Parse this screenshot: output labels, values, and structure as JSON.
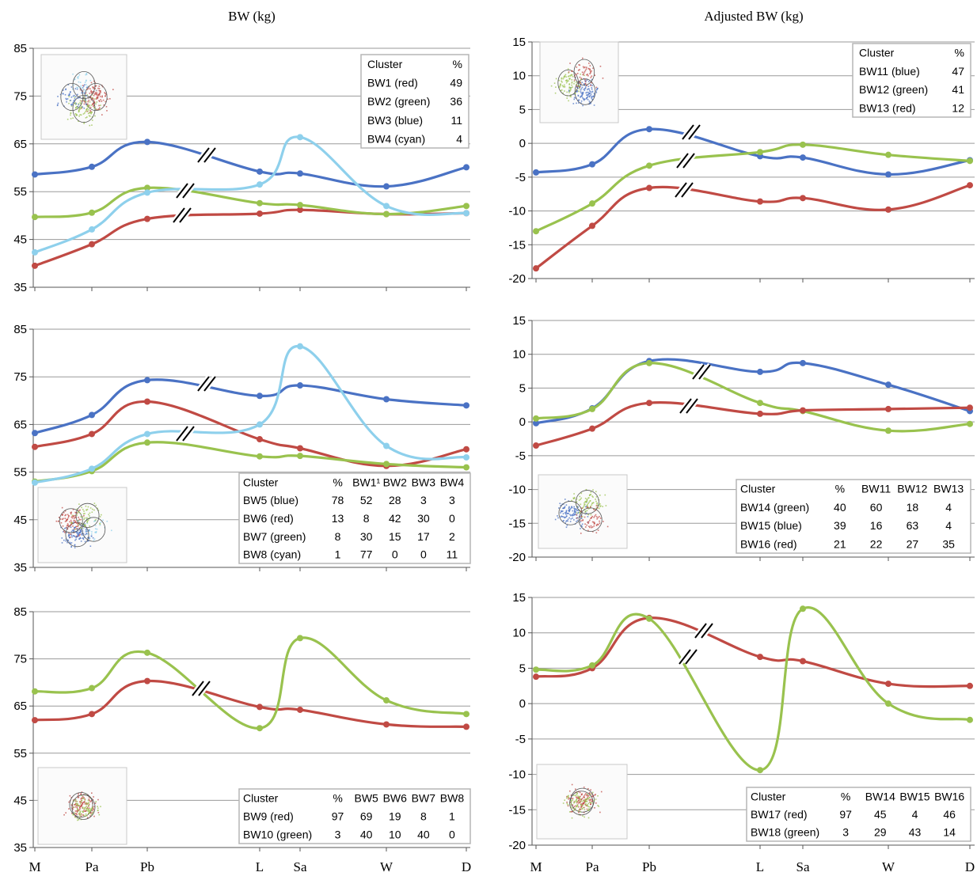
{
  "column_titles": [
    "BW (kg)",
    "Adjusted BW (kg)"
  ],
  "x_categories": [
    "M",
    "Pa",
    "Pb",
    "L",
    "Sa",
    "W",
    "D"
  ],
  "colors": {
    "blue": "#4a72c4",
    "red": "#c04a44",
    "green": "#99c24e",
    "cyan": "#8ed0ec"
  },
  "chart_data": [
    {
      "type": "line",
      "ylim": [
        35,
        85
      ],
      "yticks": [
        35,
        45,
        55,
        65,
        75,
        85
      ],
      "categories": [
        "M",
        "Pa",
        "Pb",
        "L",
        "Sa",
        "W",
        "D"
      ],
      "series": [
        {
          "name": "BW1 (red)",
          "color": "red",
          "values": [
            39.5,
            44,
            49.3,
            50.4,
            51.2,
            50.3,
            50.5
          ]
        },
        {
          "name": "BW2 (green)",
          "color": "green",
          "values": [
            49.7,
            50.6,
            55.8,
            52.6,
            52.2,
            50.3,
            52.0
          ]
        },
        {
          "name": "BW3 (blue)",
          "color": "blue",
          "values": [
            58.6,
            60.2,
            65.4,
            59.2,
            58.8,
            56.1,
            60.1
          ]
        },
        {
          "name": "BW4 (cyan)",
          "color": "cyan",
          "values": [
            42.3,
            47.1,
            54.8,
            56.5,
            66.4,
            52.0,
            50.5
          ]
        }
      ],
      "table": {
        "header": [
          "Cluster",
          "%"
        ],
        "rows": [
          [
            "BW1 (red)",
            "49"
          ],
          [
            "BW2 (green)",
            "36"
          ],
          [
            "BW3 (blue)",
            "11"
          ],
          [
            "BW4 (cyan)",
            "4"
          ]
        ]
      }
    },
    {
      "type": "line",
      "ylim": [
        -20,
        15
      ],
      "yticks": [
        -20,
        -15,
        -10,
        -5,
        0,
        5,
        10,
        15
      ],
      "categories": [
        "M",
        "Pa",
        "Pb",
        "L",
        "Sa",
        "W",
        "D"
      ],
      "series": [
        {
          "name": "BW11 (blue)",
          "color": "blue",
          "values": [
            -4.3,
            -3.1,
            2.1,
            -1.9,
            -2.1,
            -4.6,
            -2.5
          ]
        },
        {
          "name": "BW12 (green)",
          "color": "green",
          "values": [
            -13.0,
            -8.9,
            -3.3,
            -1.3,
            -0.2,
            -1.7,
            -2.6
          ]
        },
        {
          "name": "BW13 (red)",
          "color": "red",
          "values": [
            -18.5,
            -12.2,
            -6.6,
            -8.6,
            -8.1,
            -9.8,
            -6.2
          ]
        }
      ],
      "table": {
        "header": [
          "Cluster",
          "%"
        ],
        "rows": [
          [
            "BW11 (blue)",
            "47"
          ],
          [
            "BW12 (green)",
            "41"
          ],
          [
            "BW13 (red)",
            "12"
          ]
        ]
      }
    },
    {
      "type": "line",
      "ylim": [
        35,
        85
      ],
      "yticks": [
        35,
        45,
        55,
        65,
        75,
        85
      ],
      "categories": [
        "M",
        "Pa",
        "Pb",
        "L",
        "Sa",
        "W",
        "D"
      ],
      "series": [
        {
          "name": "BW5 (blue)",
          "color": "blue",
          "values": [
            63.2,
            67.0,
            74.3,
            71.0,
            73.2,
            70.3,
            69.0
          ]
        },
        {
          "name": "BW6 (red)",
          "color": "red",
          "values": [
            60.3,
            63.0,
            69.8,
            61.9,
            60.0,
            56.3,
            59.8
          ]
        },
        {
          "name": "BW7 (green)",
          "color": "green",
          "values": [
            53.0,
            55.2,
            61.2,
            58.3,
            58.4,
            56.7,
            56.0
          ]
        },
        {
          "name": "BW8 (cyan)",
          "color": "cyan",
          "values": [
            52.8,
            55.7,
            63.0,
            65.0,
            81.4,
            60.5,
            58.1
          ]
        }
      ],
      "table": {
        "header": [
          "Cluster",
          "%",
          "BW1¹",
          "BW2",
          "BW3",
          "BW4"
        ],
        "rows": [
          [
            "BW5 (blue)",
            "78",
            "52",
            "28",
            "3",
            "3"
          ],
          [
            "BW6 (red)",
            "13",
            "8",
            "42",
            "30",
            "0"
          ],
          [
            "BW7 (green)",
            "8",
            "30",
            "15",
            "17",
            "2"
          ],
          [
            "BW8 (cyan)",
            "1",
            "77",
            "0",
            "0",
            "11"
          ]
        ]
      }
    },
    {
      "type": "line",
      "ylim": [
        -20,
        15
      ],
      "yticks": [
        -20,
        -15,
        -10,
        -5,
        0,
        5,
        10,
        15
      ],
      "categories": [
        "M",
        "Pa",
        "Pb",
        "L",
        "Sa",
        "W",
        "D"
      ],
      "series": [
        {
          "name": "BW15 (blue)",
          "color": "blue",
          "values": [
            -0.2,
            2.0,
            9.0,
            7.4,
            8.7,
            5.5,
            1.6
          ]
        },
        {
          "name": "BW14 (green)",
          "color": "green",
          "values": [
            0.5,
            1.9,
            8.7,
            2.8,
            1.6,
            -1.3,
            -0.3
          ]
        },
        {
          "name": "BW16 (red)",
          "color": "red",
          "values": [
            -3.5,
            -1.0,
            2.8,
            1.2,
            1.7,
            1.9,
            2.1
          ]
        }
      ],
      "table": {
        "header": [
          "Cluster",
          "%",
          "BW11",
          "BW12",
          "BW13"
        ],
        "rows": [
          [
            "BW14 (green)",
            "40",
            "60",
            "18",
            "4"
          ],
          [
            "BW15 (blue)",
            "39",
            "16",
            "63",
            "4"
          ],
          [
            "BW16 (red)",
            "21",
            "22",
            "27",
            "35"
          ]
        ]
      }
    },
    {
      "type": "line",
      "ylim": [
        35,
        85
      ],
      "yticks": [
        35,
        45,
        55,
        65,
        75,
        85
      ],
      "categories": [
        "M",
        "Pa",
        "Pb",
        "L",
        "Sa",
        "W",
        "D"
      ],
      "series": [
        {
          "name": "BW9 (red)",
          "color": "red",
          "values": [
            62.0,
            63.3,
            70.3,
            64.8,
            64.2,
            61.1,
            60.6
          ]
        },
        {
          "name": "BW10 (green)",
          "color": "green",
          "values": [
            68.1,
            68.8,
            76.3,
            60.3,
            79.4,
            66.2,
            63.3
          ]
        }
      ],
      "table": {
        "header": [
          "Cluster",
          "%",
          "BW5",
          "BW6",
          "BW7",
          "BW8"
        ],
        "rows": [
          [
            "BW9 (red)",
            "97",
            "69",
            "19",
            "8",
            "1"
          ],
          [
            "BW10 (green)",
            "3",
            "40",
            "10",
            "40",
            "0"
          ]
        ]
      }
    },
    {
      "type": "line",
      "ylim": [
        -20,
        15
      ],
      "yticks": [
        -20,
        -15,
        -10,
        -5,
        0,
        5,
        10,
        15
      ],
      "categories": [
        "M",
        "Pa",
        "Pb",
        "L",
        "Sa",
        "W",
        "D"
      ],
      "series": [
        {
          "name": "BW17 (red)",
          "color": "red",
          "values": [
            3.8,
            5.0,
            12.1,
            6.6,
            6.0,
            2.8,
            2.5
          ]
        },
        {
          "name": "BW18 (green)",
          "color": "green",
          "values": [
            4.8,
            5.4,
            12.0,
            -9.4,
            13.4,
            0.0,
            -2.3
          ]
        }
      ],
      "table": {
        "header": [
          "Cluster",
          "%",
          "BW14",
          "BW15",
          "BW16"
        ],
        "rows": [
          [
            "BW17 (red)",
            "97",
            "45",
            "4",
            "46"
          ],
          [
            "BW18 (green)",
            "3",
            "29",
            "43",
            "14"
          ]
        ]
      }
    }
  ]
}
